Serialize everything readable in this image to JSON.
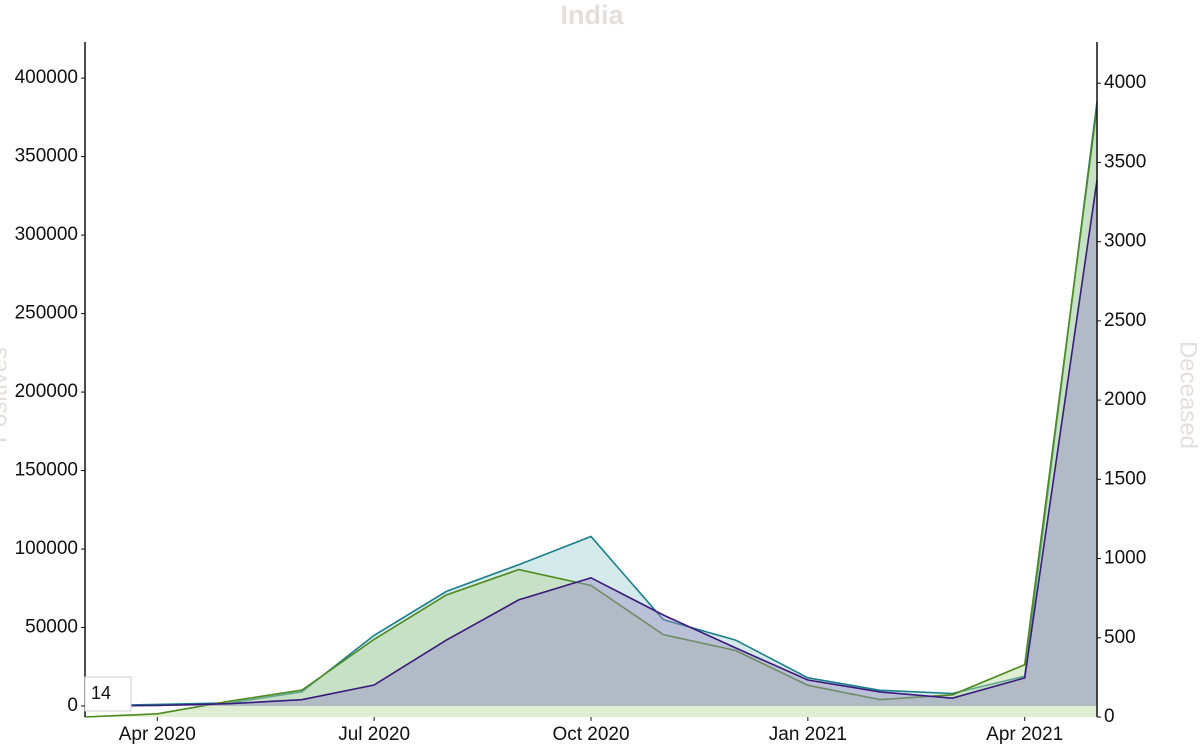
{
  "chart_data": {
    "type": "area",
    "title": "India",
    "ylabel": "Positives",
    "y2label": "Deceased",
    "x": [
      "2020-03",
      "2020-04",
      "2020-05",
      "2020-06",
      "2020-07",
      "2020-08",
      "2020-09",
      "2020-10",
      "2020-11",
      "2020-12",
      "2021-01",
      "2021-02",
      "2021-03",
      "2021-04",
      "2021-05"
    ],
    "xlim": [
      "2020-03",
      "2021-05"
    ],
    "xticks": [
      {
        "value": "2020-04",
        "label": "Apr 2020"
      },
      {
        "value": "2020-07",
        "label": "Jul 2020"
      },
      {
        "value": "2020-10",
        "label": "Oct 2020"
      },
      {
        "value": "2021-01",
        "label": "Jan 2021"
      },
      {
        "value": "2021-04",
        "label": "Apr 2021"
      }
    ],
    "ylim": [
      -7000,
      423000
    ],
    "yticks": [
      0,
      50000,
      100000,
      150000,
      200000,
      250000,
      300000,
      350000,
      400000
    ],
    "y2lim": [
      0,
      4260
    ],
    "y2ticks": [
      0,
      500,
      1000,
      1500,
      2000,
      2500,
      3000,
      3500,
      4000
    ],
    "series": [
      {
        "color": "#1b7f8a",
        "fill": "#9fcfcf",
        "values": [
          0,
          1000,
          2000,
          9000,
          45000,
          73000,
          90000,
          108000,
          55000,
          42000,
          18000,
          10000,
          8000,
          19000,
          385000
        ]
      },
      {
        "color": "#4c8a1e",
        "fill": "#b9d89e",
        "axis": "y2",
        "values": [
          0,
          20,
          100,
          170,
          490,
          770,
          930,
          830,
          520,
          420,
          200,
          110,
          140,
          330,
          3850
        ]
      },
      {
        "color": "#3a1a7c",
        "fill": "#9a8fc4",
        "values": [
          0,
          300,
          1500,
          4000,
          13400,
          42000,
          67600,
          81700,
          58000,
          37000,
          16600,
          9000,
          5000,
          17900,
          335000
        ]
      }
    ]
  },
  "input_value": "14"
}
